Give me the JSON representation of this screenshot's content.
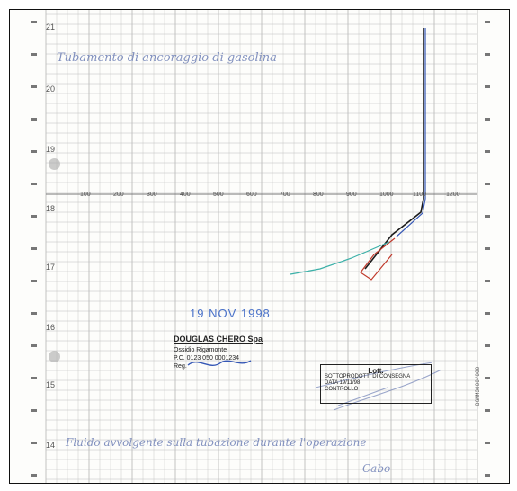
{
  "document": {
    "row_numbers": [
      "21",
      "20",
      "19",
      "18",
      "17",
      "16",
      "15",
      "14"
    ],
    "horizontal_scale_labels": [
      "100",
      "200",
      "300",
      "400",
      "500",
      "600",
      "700",
      "800",
      "900",
      "1000",
      "1100",
      "1200"
    ],
    "handwriting": {
      "top_note": "Tubamento di ancoraggio di gasolina",
      "bottom_note": "Fluido avvolgente sulla tubazione durante l'operazione",
      "signature": "Cabo"
    },
    "stamp_date": "19 NOV 1998",
    "company_stamp": {
      "name": "DOUGLAS CHERO Spa",
      "lines": [
        "Ossidio Rigamonte",
        "P.C. 0123 050 0001234",
        "Reg."
      ]
    },
    "box_stamp": {
      "header": "Lott.",
      "lines": [
        "SOTTOPRODOTTI DI CONSEGNA",
        "DATA 19/11/98",
        "CONTROLLO"
      ]
    },
    "vertical_code": "DGMM3000/000",
    "colors": {
      "grid": "#bcbcbc",
      "pen_black": "#1c1c1c",
      "pen_blue": "#3557b5",
      "pen_red": "#c0392b",
      "pen_teal": "#3bb0a8",
      "handwriting": "#6d7fb5"
    }
  }
}
